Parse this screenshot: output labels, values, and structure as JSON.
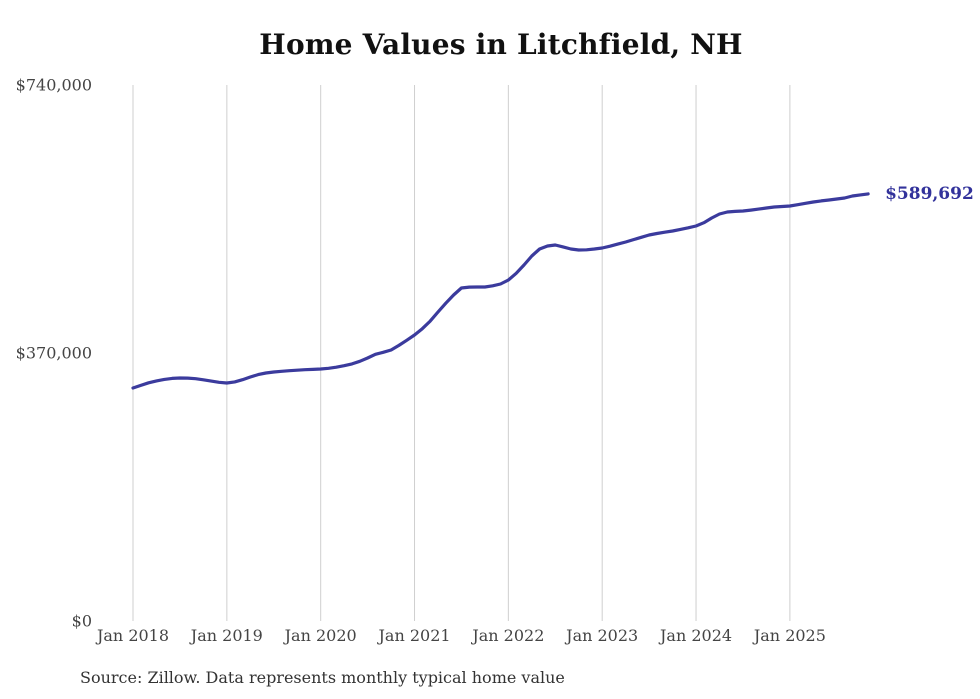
{
  "chart_data": {
    "type": "line",
    "title": "Home Values in Litchfield, NH",
    "xlabel": "",
    "ylabel": "",
    "ylim": [
      0,
      740000
    ],
    "grid": "vertical-yearly-gridlines",
    "legend_position": "none",
    "y_tick_labels": [
      "$740,000",
      "$370,000",
      "$0"
    ],
    "y_tick_values": [
      740000,
      370000,
      0
    ],
    "x_tick_labels": [
      "Jan 2018",
      "Jan 2019",
      "Jan 2020",
      "Jan 2021",
      "Jan 2022",
      "Jan 2023",
      "Jan 2024",
      "Jan 2025"
    ],
    "end_label": "$589,692",
    "last_value": 589692,
    "line_color": "#3b3b9d",
    "label_color": "#32329b",
    "grid_color": "#cfcfcf",
    "series": [
      {
        "name": "Monthly typical home value",
        "start_month": "Jan 2018",
        "frequency": "monthly",
        "values": [
          321700,
          325300,
          328900,
          331500,
          333600,
          334900,
          335500,
          335400,
          334500,
          333000,
          331200,
          329600,
          328600,
          330100,
          333100,
          336900,
          340200,
          342400,
          343800,
          344800,
          345600,
          346300,
          346900,
          347400,
          347900,
          348900,
          350400,
          352400,
          355000,
          358600,
          363100,
          368200,
          371000,
          374100,
          380500,
          387500,
          394900,
          403500,
          414000,
          426600,
          438800,
          450100,
          459700,
          461000,
          461100,
          461100,
          462800,
          465300,
          470800,
          480000,
          491500,
          503900,
          513600,
          517700,
          519100,
          516500,
          513600,
          512200,
          512500,
          513600,
          514900,
          517500,
          520300,
          523200,
          526500,
          529800,
          532900,
          535000,
          536800,
          538400,
          540600,
          542900,
          545300,
          549900,
          556400,
          561900,
          564600,
          565500,
          566000,
          567300,
          568700,
          570200,
          571500,
          572300,
          572900,
          574800,
          576700,
          578500,
          580000,
          581300,
          582600,
          584000,
          586700,
          588300,
          589692
        ]
      }
    ]
  },
  "footer": {
    "source": "Source: Zillow. Data represents monthly typical home value"
  }
}
